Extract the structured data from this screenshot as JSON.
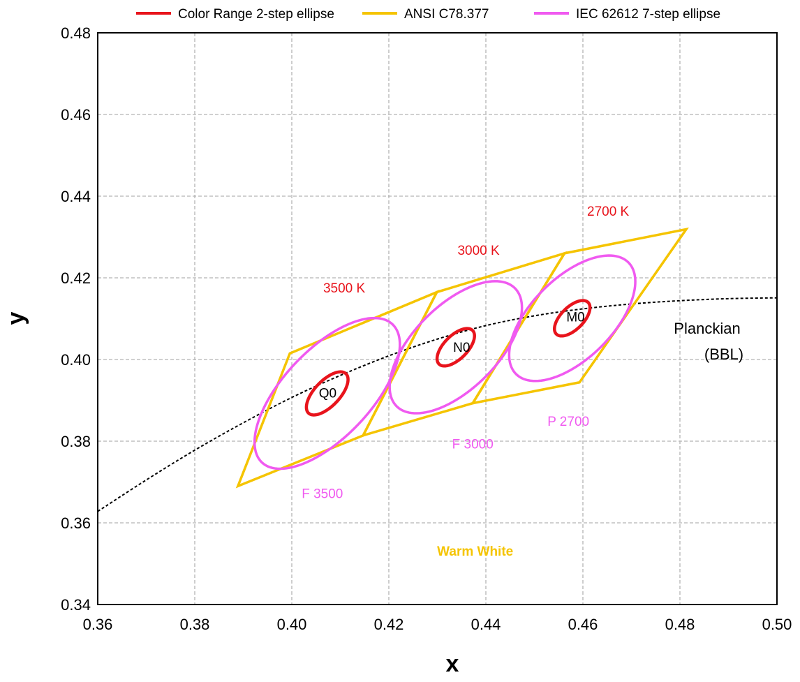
{
  "chart_data": {
    "type": "line",
    "xlabel": "x",
    "ylabel": "y",
    "xlim": [
      0.36,
      0.5
    ],
    "ylim": [
      0.34,
      0.48
    ],
    "xticks": [
      "0.36",
      "0.38",
      "0.40",
      "0.42",
      "0.44",
      "0.46",
      "0.48",
      "0.50"
    ],
    "yticks": [
      "0.34",
      "0.36",
      "0.38",
      "0.40",
      "0.42",
      "0.44",
      "0.46",
      "0.48"
    ],
    "grid": true,
    "legend_position": "top",
    "colors": {
      "red": "#e8141c",
      "gold": "#f5c400",
      "magenta": "#f05af0",
      "black": "#000000",
      "grid": "#b4b4b4"
    },
    "legend": [
      {
        "name": "Color Range 2-step ellipse",
        "color": "#e8141c"
      },
      {
        "name": "ANSI C78.377",
        "color": "#f5c400"
      },
      {
        "name": "IEC 62612 7-step ellipse",
        "color": "#f05af0"
      }
    ],
    "planckian": {
      "label_line1": "Planckian",
      "label_line2": "(BBL)",
      "points": [
        [
          0.36,
          0.3628
        ],
        [
          0.37,
          0.3705
        ],
        [
          0.38,
          0.3778
        ],
        [
          0.39,
          0.3845
        ],
        [
          0.4,
          0.3907
        ],
        [
          0.41,
          0.3961
        ],
        [
          0.42,
          0.4009
        ],
        [
          0.43,
          0.405
        ],
        [
          0.44,
          0.4083
        ],
        [
          0.45,
          0.4107
        ],
        [
          0.46,
          0.4124
        ],
        [
          0.47,
          0.4136
        ],
        [
          0.48,
          0.4144
        ],
        [
          0.49,
          0.4149
        ],
        [
          0.5,
          0.4151
        ]
      ]
    },
    "ansi_quads": [
      {
        "name": "3500 K",
        "points": [
          [
            0.3996,
            0.4015
          ],
          [
            0.4299,
            0.4165
          ],
          [
            0.4147,
            0.3814
          ],
          [
            0.3889,
            0.369
          ]
        ]
      },
      {
        "name": "3000 K",
        "points": [
          [
            0.4299,
            0.4165
          ],
          [
            0.4562,
            0.426
          ],
          [
            0.4373,
            0.3893
          ],
          [
            0.4147,
            0.3814
          ]
        ]
      },
      {
        "name": "2700 K",
        "points": [
          [
            0.4562,
            0.426
          ],
          [
            0.4813,
            0.4319
          ],
          [
            0.4593,
            0.3944
          ],
          [
            0.4373,
            0.3893
          ]
        ]
      }
    ],
    "iec_ellipses": [
      {
        "name": "F 3500",
        "center": [
          0.4073,
          0.3917
        ],
        "a": 0.0217,
        "b": 0.0097,
        "angle_deg": 54
      },
      {
        "name": "F 3000",
        "center": [
          0.4338,
          0.403
        ],
        "a": 0.019,
        "b": 0.0093,
        "angle_deg": 53
      },
      {
        "name": "P 2700",
        "center": [
          0.4578,
          0.4101
        ],
        "a": 0.018,
        "b": 0.009,
        "angle_deg": 53
      }
    ],
    "color_range_ellipses": [
      {
        "name": "Q0",
        "center": [
          0.4073,
          0.3917
        ],
        "a": 0.0062,
        "b": 0.0028,
        "angle_deg": 54
      },
      {
        "name": "N0",
        "center": [
          0.4338,
          0.403
        ],
        "a": 0.0054,
        "b": 0.0026,
        "angle_deg": 53
      },
      {
        "name": "M0",
        "center": [
          0.4578,
          0.4101
        ],
        "a": 0.0051,
        "b": 0.0025,
        "angle_deg": 53
      }
    ],
    "annotations": [
      {
        "text": "3500 K",
        "x": 0.4108,
        "y": 0.4164,
        "color": "#e8141c"
      },
      {
        "text": "3000 K",
        "x": 0.4385,
        "y": 0.4256,
        "color": "#e8141c"
      },
      {
        "text": "2700 K",
        "x": 0.4652,
        "y": 0.4352,
        "color": "#e8141c"
      },
      {
        "text": "Q0",
        "x": 0.4074,
        "y": 0.3907,
        "color": "#000000"
      },
      {
        "text": "N0",
        "x": 0.435,
        "y": 0.4019,
        "color": "#000000"
      },
      {
        "text": "M0",
        "x": 0.4585,
        "y": 0.4093,
        "color": "#000000"
      },
      {
        "text": "F 3500",
        "x": 0.4063,
        "y": 0.3661,
        "color": "#f05af0"
      },
      {
        "text": "F 3000",
        "x": 0.4373,
        "y": 0.3782,
        "color": "#f05af0"
      },
      {
        "text": "P 2700",
        "x": 0.457,
        "y": 0.3838,
        "color": "#f05af0"
      },
      {
        "text": "Warm White",
        "x": 0.4378,
        "y": 0.352,
        "color": "#f5c400",
        "bold": true
      }
    ]
  }
}
